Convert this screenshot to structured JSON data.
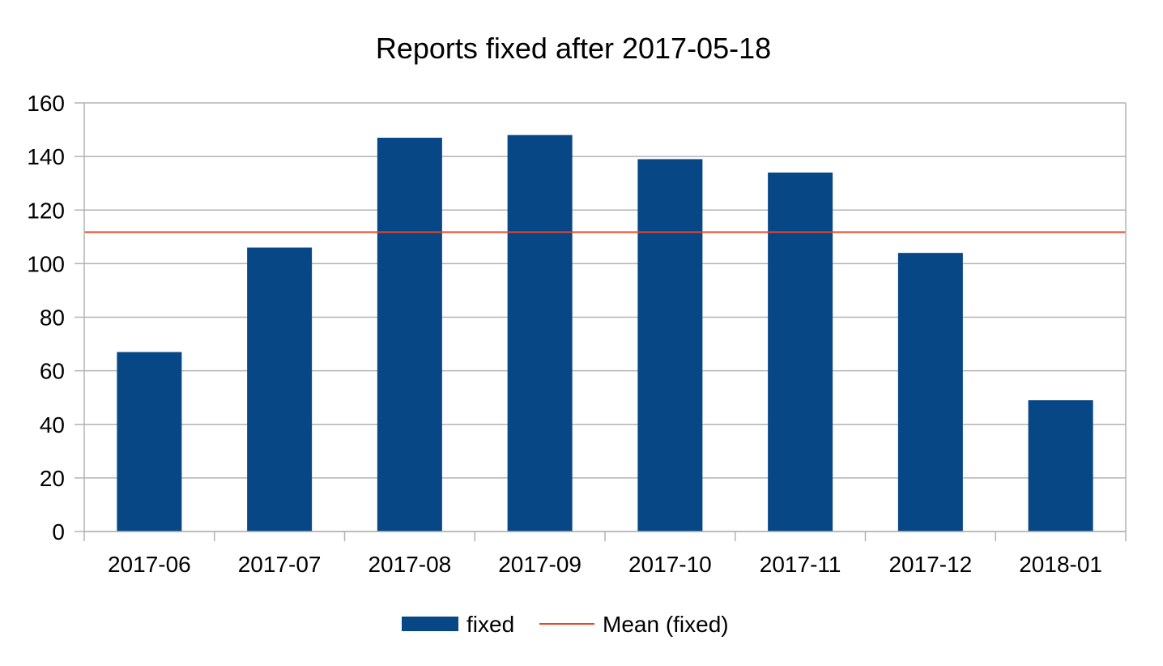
{
  "chart_data": {
    "type": "bar",
    "title": "Reports fixed after 2017-05-18",
    "categories": [
      "2017-06",
      "2017-07",
      "2017-08",
      "2017-09",
      "2017-10",
      "2017-11",
      "2017-12",
      "2018-01"
    ],
    "series": [
      {
        "name": "fixed",
        "type": "bar",
        "values": [
          67,
          106,
          147,
          148,
          139,
          134,
          104,
          49
        ],
        "color": "#084785"
      }
    ],
    "mean_line": {
      "name": "Mean (fixed)",
      "value": 111.75,
      "color": "#ee4422"
    },
    "ylim": [
      0,
      160
    ],
    "yticks": [
      0,
      20,
      40,
      60,
      80,
      100,
      120,
      140,
      160
    ],
    "grid": true,
    "legend_position": "bottom"
  }
}
